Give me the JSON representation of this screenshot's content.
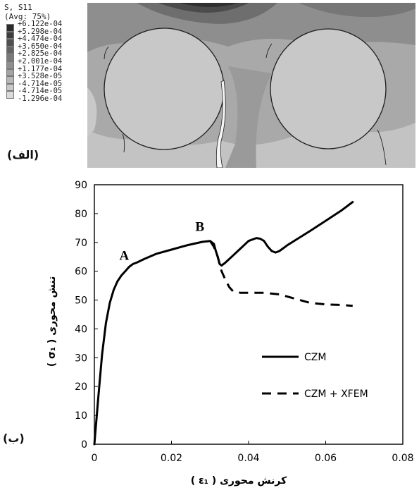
{
  "panel_a": {
    "label": "(الف)",
    "legend": {
      "title": "S, S11",
      "subtitle": "(Avg: 75%)",
      "values": [
        "+6.122e-04",
        "+5.298e-04",
        "+4.474e-04",
        "+3.650e-04",
        "+2.825e-04",
        "+2.001e-04",
        "+1.177e-04",
        "+3.528e-05",
        "-4.714e-05",
        "-1.296e-04"
      ],
      "colors": [
        "#2c2c2c",
        "#3d3d3d",
        "#505050",
        "#646464",
        "#7a7a7a",
        "#8f8f8f",
        "#a4a4a4",
        "#b7b7b7",
        "#c9c9c9",
        "#dadada"
      ]
    }
  },
  "panel_b": {
    "label": "(ب)"
  },
  "chart_data": {
    "type": "line",
    "xlabel": "کرنش محوری ( ε₁ )",
    "ylabel": "تنش محوری ( σ₁ )",
    "xlim": [
      0,
      0.08
    ],
    "ylim": [
      0,
      90
    ],
    "xticks": [
      0,
      0.02,
      0.04,
      0.06,
      0.08
    ],
    "xtick_labels": [
      "0",
      "0.02",
      "0.04",
      "0.06",
      "0.08"
    ],
    "yticks": [
      0,
      10,
      20,
      30,
      40,
      50,
      60,
      70,
      80,
      90
    ],
    "ytick_labels": [
      "0",
      "10",
      "20",
      "30",
      "40",
      "50",
      "60",
      "70",
      "80",
      "90"
    ],
    "grid": false,
    "legend_position": "center-right",
    "series": [
      {
        "name": "CZM",
        "style": "solid",
        "x": [
          0,
          0.001,
          0.002,
          0.003,
          0.004,
          0.005,
          0.006,
          0.007,
          0.008,
          0.009,
          0.01,
          0.011,
          0.013,
          0.016,
          0.02,
          0.024,
          0.028,
          0.03,
          0.031,
          0.0315,
          0.032,
          0.0325,
          0.033,
          0.034,
          0.036,
          0.038,
          0.04,
          0.042,
          0.043,
          0.044,
          0.045,
          0.046,
          0.047,
          0.048,
          0.049,
          0.05,
          0.053,
          0.056,
          0.06,
          0.064,
          0.067
        ],
        "y": [
          0,
          16,
          31,
          42,
          49,
          53.5,
          56.5,
          58.5,
          60,
          61.5,
          62.5,
          63,
          64.3,
          66,
          67.5,
          69,
          70.2,
          70.5,
          69.5,
          67,
          65,
          62.5,
          62,
          63,
          65.5,
          68,
          70.5,
          71.5,
          71.3,
          70.5,
          68.5,
          67,
          66.5,
          67,
          68,
          69,
          71.5,
          74,
          77.5,
          81,
          84
        ]
      },
      {
        "name": "CZM + XFEM",
        "style": "dashed",
        "x": [
          0.03,
          0.031,
          0.032,
          0.0325,
          0.033,
          0.034,
          0.035,
          0.036,
          0.038,
          0.04,
          0.044,
          0.048,
          0.052,
          0.056,
          0.06,
          0.064,
          0.067
        ],
        "y": [
          70.5,
          68.5,
          65,
          62.5,
          60,
          57,
          54.5,
          53,
          52.5,
          52.5,
          52.5,
          52,
          50.5,
          49,
          48.5,
          48.3,
          48
        ]
      }
    ],
    "annotations": [
      {
        "text": "A",
        "x": 0.009,
        "y": 64
      },
      {
        "text": "B",
        "x": 0.0285,
        "y": 74
      }
    ]
  }
}
